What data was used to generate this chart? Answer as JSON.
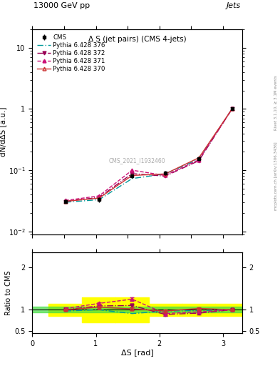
{
  "title_top": "13000 GeV pp",
  "title_right": "Jets",
  "plot_title": "Δ S (jet pairs) (CMS 4-jets)",
  "xlabel": "ΔS [rad]",
  "ylabel_main": "dN/dΔS [a.u.]",
  "ylabel_ratio": "Ratio to CMS",
  "watermark": "CMS_2021_I1932460",
  "right_label": "Rivet 3.1.10, ≥ 3.1M events",
  "right_label2": "mcplots.cern.ch [arXiv:1306.3436]",
  "cms_x": [
    0.52,
    1.05,
    1.57,
    2.09,
    2.62,
    3.14
  ],
  "cms_y": [
    0.031,
    0.033,
    0.08,
    0.09,
    0.155,
    1.0
  ],
  "cms_yerr": [
    0.002,
    0.003,
    0.006,
    0.007,
    0.012,
    0.04
  ],
  "py370_x": [
    0.52,
    1.05,
    1.57,
    2.09,
    2.62,
    3.14
  ],
  "py370_y": [
    0.031,
    0.035,
    0.082,
    0.087,
    0.16,
    1.0
  ],
  "py371_x": [
    0.52,
    1.05,
    1.57,
    2.09,
    2.62,
    3.14
  ],
  "py371_y": [
    0.032,
    0.038,
    0.1,
    0.082,
    0.148,
    1.0
  ],
  "py372_x": [
    0.52,
    1.05,
    1.57,
    2.09,
    2.62,
    3.14
  ],
  "py372_y": [
    0.031,
    0.036,
    0.088,
    0.08,
    0.143,
    1.0
  ],
  "py376_x": [
    0.52,
    1.05,
    1.57,
    2.09,
    2.62,
    3.14
  ],
  "py376_y": [
    0.03,
    0.033,
    0.073,
    0.087,
    0.152,
    1.0
  ],
  "ratio_x": [
    0.52,
    1.05,
    1.57,
    2.09,
    2.62,
    3.14
  ],
  "ratio_py370": [
    1.0,
    1.06,
    1.02,
    0.97,
    1.03,
    1.0
  ],
  "ratio_py371": [
    1.03,
    1.15,
    1.25,
    0.91,
    0.95,
    1.0
  ],
  "ratio_py372": [
    1.0,
    1.09,
    1.1,
    0.89,
    0.92,
    1.0
  ],
  "ratio_py376": [
    0.97,
    1.0,
    0.91,
    0.97,
    0.98,
    1.0
  ],
  "ratio_py370_err": [
    0.02,
    0.03,
    0.03,
    0.03,
    0.03,
    0.02
  ],
  "ratio_py371_err": [
    0.02,
    0.03,
    0.04,
    0.03,
    0.03,
    0.02
  ],
  "ratio_py372_err": [
    0.02,
    0.03,
    0.04,
    0.03,
    0.03,
    0.02
  ],
  "ratio_py376_err": [
    0.02,
    0.02,
    0.03,
    0.02,
    0.02,
    0.02
  ],
  "yellow_band_edges": [
    0.26,
    0.785,
    1.31,
    1.83,
    2.355,
    2.88,
    3.3
  ],
  "yellow_band_lo": [
    0.86,
    0.7,
    0.7,
    0.86,
    0.86,
    0.86,
    0.86
  ],
  "yellow_band_hi": [
    1.14,
    1.3,
    1.3,
    1.14,
    1.14,
    1.14,
    1.14
  ],
  "green_lo": 0.93,
  "green_hi": 1.07,
  "color_cms": "#000000",
  "color_370": "#cc3333",
  "color_371": "#cc1177",
  "color_372": "#990055",
  "color_376": "#009999",
  "ylim_main": [
    0.009,
    20
  ],
  "ylim_ratio": [
    0.45,
    2.35
  ],
  "xlim": [
    0.0,
    3.3
  ],
  "yticks_ratio": [
    0.5,
    1.0,
    2.0
  ],
  "ytick_labels_ratio": [
    "0.5",
    "1",
    "2"
  ]
}
